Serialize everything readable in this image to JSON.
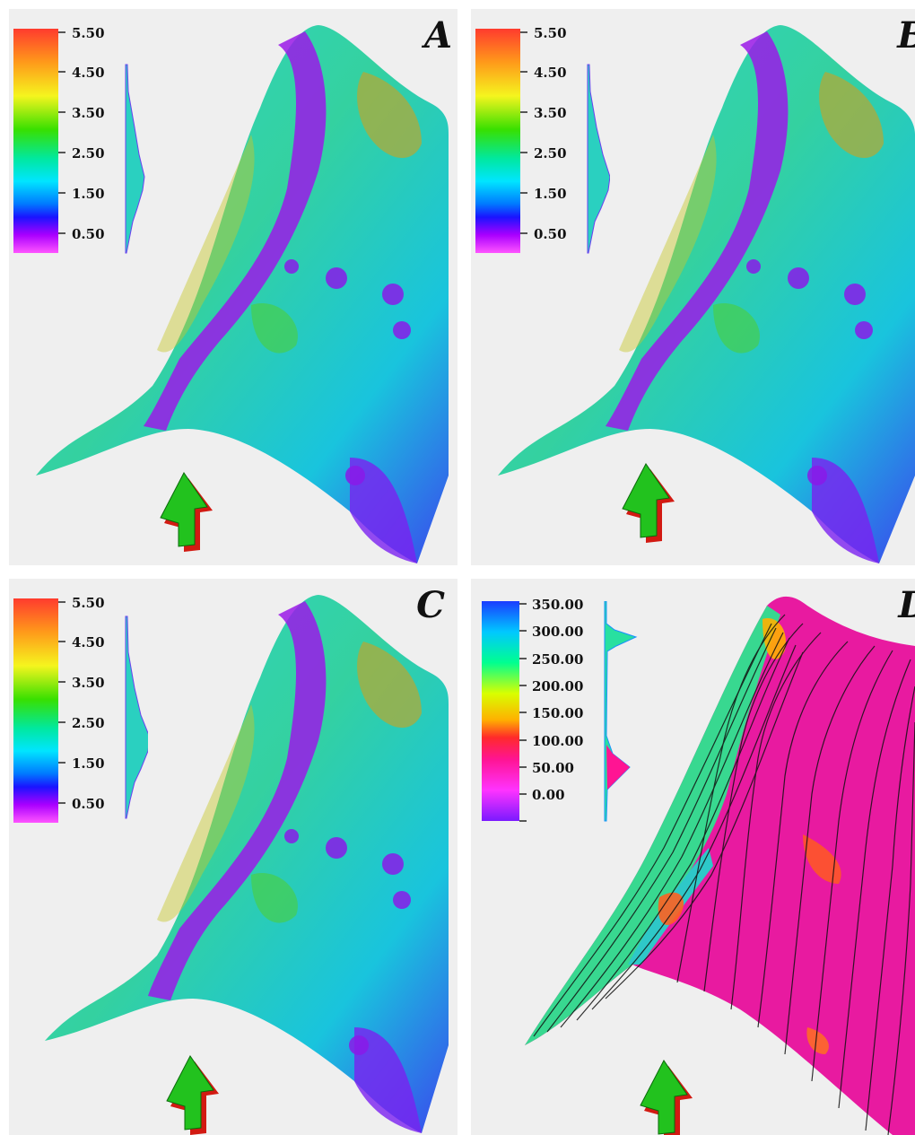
{
  "panels": [
    {
      "letter": "A",
      "colormap": [
        "#ff3b2e",
        "#ff9a1a",
        "#f5f51e",
        "#38e000",
        "#00e8a0",
        "#00e5ff",
        "#007bff",
        "#1a14ff",
        "#aa00ff",
        "#ff55ff"
      ],
      "legend_ticks": [
        "5.50",
        "4.50",
        "3.50",
        "2.50",
        "1.50",
        "0.50"
      ]
    },
    {
      "letter": "B",
      "colormap": [
        "#ff3b2e",
        "#ff9a1a",
        "#f5f51e",
        "#38e000",
        "#00e8a0",
        "#00e5ff",
        "#007bff",
        "#1a14ff",
        "#aa00ff",
        "#ff55ff"
      ],
      "legend_ticks": [
        "5.50",
        "4.50",
        "3.50",
        "2.50",
        "1.50",
        "0.50"
      ]
    },
    {
      "letter": "C",
      "colormap": [
        "#ff3b2e",
        "#ff9a1a",
        "#f5f51e",
        "#38e000",
        "#00e8a0",
        "#00e5ff",
        "#007bff",
        "#1a14ff",
        "#aa00ff",
        "#ff55ff"
      ],
      "legend_ticks": [
        "5.50",
        "4.50",
        "3.50",
        "2.50",
        "1.50",
        "0.50"
      ]
    },
    {
      "letter": "D",
      "colormap": [
        "#1a3cff",
        "#00c8ff",
        "#00ff90",
        "#d8ff00",
        "#ffb000",
        "#ff2a2a",
        "#ff1493",
        "#ff33ff",
        "#7a1aff"
      ],
      "legend_ticks": [
        "350.00",
        "300.00",
        "250.00",
        "200.00",
        "150.00",
        "100.00",
        "50.00",
        "0.00"
      ]
    }
  ],
  "colors": {
    "background": "#efefef",
    "arrow_top": "#22c21e",
    "arrow_side": "#d21a12"
  },
  "icons": [
    "north-arrow-icon"
  ]
}
